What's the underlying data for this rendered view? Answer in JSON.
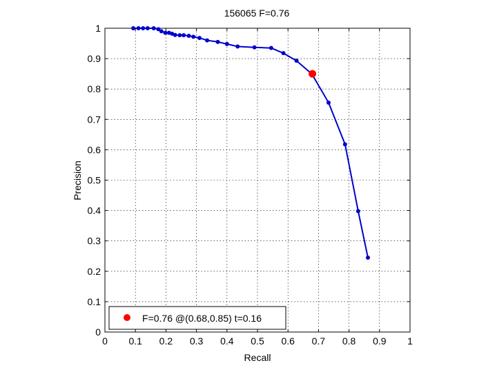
{
  "chart_data": {
    "type": "line",
    "title": "156065 F=0.76",
    "xlabel": "Recall",
    "ylabel": "Precision",
    "xlim": [
      0,
      1
    ],
    "ylim": [
      0,
      1
    ],
    "xticks": [
      "0",
      "0.1",
      "0.2",
      "0.3",
      "0.4",
      "0.5",
      "0.6",
      "0.7",
      "0.8",
      "0.9",
      "1"
    ],
    "yticks": [
      "0",
      "0.1",
      "0.2",
      "0.3",
      "0.4",
      "0.5",
      "0.6",
      "0.7",
      "0.8",
      "0.9",
      "1"
    ],
    "grid": true,
    "legend_position": "bottom-left",
    "series": [
      {
        "color": "#0000cc",
        "x": [
          0.093,
          0.11,
          0.125,
          0.14,
          0.16,
          0.175,
          0.185,
          0.198,
          0.21,
          0.22,
          0.23,
          0.245,
          0.258,
          0.275,
          0.29,
          0.31,
          0.335,
          0.37,
          0.4,
          0.435,
          0.49,
          0.545,
          0.585,
          0.628,
          0.678,
          0.733,
          0.787,
          0.83,
          0.862
        ],
        "y": [
          1.0,
          1.0,
          1.0,
          1.0,
          1.0,
          0.997,
          0.99,
          0.985,
          0.985,
          0.982,
          0.978,
          0.977,
          0.977,
          0.975,
          0.972,
          0.968,
          0.96,
          0.955,
          0.948,
          0.94,
          0.937,
          0.935,
          0.918,
          0.893,
          0.85,
          0.755,
          0.618,
          0.398,
          0.245
        ]
      }
    ],
    "marker": {
      "color": "#ff0000",
      "x": 0.68,
      "y": 0.85,
      "label": "F=0.76 @(0.68,0.85) t=0.16"
    }
  }
}
